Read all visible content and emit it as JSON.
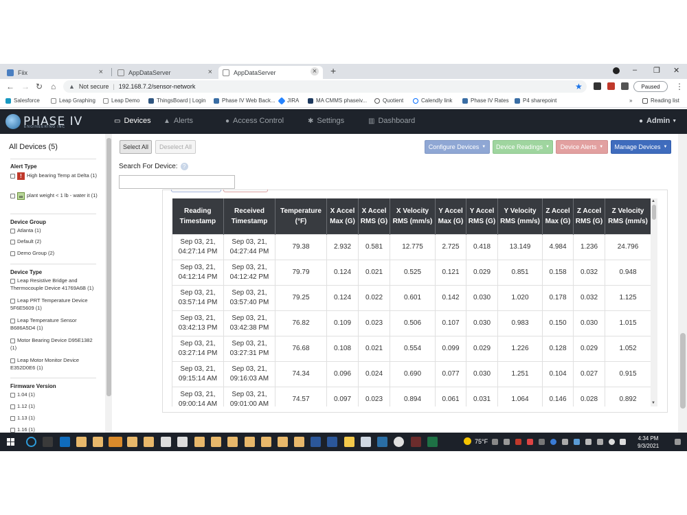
{
  "browser": {
    "tabs": [
      {
        "label": "Fiix",
        "icon": "fiix-icon"
      },
      {
        "label": "AppDataServer",
        "icon": "page-icon"
      },
      {
        "label": "AppDataServer",
        "icon": "page-icon",
        "active": true
      }
    ],
    "not_secure": "Not secure",
    "url": "192.168.7.2/sensor-network",
    "paused": "Paused",
    "bookmarks": [
      "Salesforce",
      "Leap Graphing",
      "Leap Demo",
      "ThingsBoard | Login",
      "Phase IV Web Back...",
      "JIRA",
      "MA CMMS phaseiv...",
      "Quotient",
      "Calendly link",
      "Phase IV Rates",
      "P4 sharepoint"
    ],
    "more": "»",
    "reading_list": "Reading list"
  },
  "app": {
    "logo": "PHASE IV",
    "logo_sub": "ENGINEERING INC",
    "nav": {
      "devices": "Devices",
      "alerts": "Alerts",
      "access_control": "Access Control",
      "settings": "Settings",
      "dashboard": "Dashboard",
      "admin": "Admin"
    }
  },
  "sidebar": {
    "title": "All Devices (5)",
    "alert_type": {
      "heading": "Alert Type",
      "items": [
        "High bearing Temp at Delta (1)",
        "plant weight < 1 lb - water it (1)"
      ]
    },
    "device_group": {
      "heading": "Device Group",
      "items": [
        "Atlanta (1)",
        "Default (2)",
        "Demo Group (2)"
      ]
    },
    "device_type": {
      "heading": "Device Type",
      "items": [
        "Leap Resistive Bridge and Thermocouple Device 41769A6B (1)",
        "Leap PRT Temperature Device 5F6E5609 (1)",
        "Leap Temperature Sensor B686A5D4 (1)",
        "Motor Bearing Device D95E1382 (1)",
        "Leap Motor Monitor Device E352D0E6 (1)"
      ]
    },
    "firmware": {
      "heading": "Firmware Version",
      "items": [
        "1.04 (1)",
        "1.12 (1)",
        "1.13 (1)",
        "1.16 (1)"
      ]
    }
  },
  "toolbar": {
    "select_all": "Select All",
    "deselect_all": "Deselect All",
    "configure": "Configure Devices",
    "readings": "Device Readings",
    "alerts": "Device Alerts",
    "manage": "Manage Devices",
    "search_label": "Search For Device:",
    "search_value": ""
  },
  "table": {
    "headers": [
      "Reading Timestamp",
      "Received Timestamp",
      "Temperature (°F)",
      "X Accel Max (G)",
      "X Accel RMS (G)",
      "X Velocity RMS (mm/s)",
      "Y Accel Max (G)",
      "Y Accel RMS (G)",
      "Y Velocity RMS (mm/s)",
      "Z Accel Max (G)",
      "Z Accel RMS (G)",
      "Z Velocity RMS (mm/s)"
    ],
    "rows": [
      [
        "Sep 03, 21, 04:27:14 PM",
        "Sep 03, 21, 04:27:44 PM",
        "79.38",
        "2.932",
        "0.581",
        "12.775",
        "2.725",
        "0.418",
        "13.149",
        "4.984",
        "1.236",
        "24.796"
      ],
      [
        "Sep 03, 21, 04:12:14 PM",
        "Sep 03, 21, 04:12:42 PM",
        "79.79",
        "0.124",
        "0.021",
        "0.525",
        "0.121",
        "0.029",
        "0.851",
        "0.158",
        "0.032",
        "0.948"
      ],
      [
        "Sep 03, 21, 03:57:14 PM",
        "Sep 03, 21, 03:57:40 PM",
        "79.25",
        "0.124",
        "0.022",
        "0.601",
        "0.142",
        "0.030",
        "1.020",
        "0.178",
        "0.032",
        "1.125"
      ],
      [
        "Sep 03, 21, 03:42:13 PM",
        "Sep 03, 21, 03:42:38 PM",
        "76.82",
        "0.109",
        "0.023",
        "0.506",
        "0.107",
        "0.030",
        "0.983",
        "0.150",
        "0.030",
        "1.015"
      ],
      [
        "Sep 03, 21, 03:27:14 PM",
        "Sep 03, 21, 03:27:31 PM",
        "76.68",
        "0.108",
        "0.021",
        "0.554",
        "0.099",
        "0.029",
        "1.226",
        "0.128",
        "0.029",
        "1.052"
      ],
      [
        "Sep 03, 21, 09:15:14 AM",
        "Sep 03, 21, 09:16:03 AM",
        "74.34",
        "0.096",
        "0.024",
        "0.690",
        "0.077",
        "0.030",
        "1.251",
        "0.104",
        "0.027",
        "0.915"
      ],
      [
        "Sep 03, 21, 09:00:14 AM",
        "Sep 03, 21, 09:01:00 AM",
        "74.57",
        "0.097",
        "0.023",
        "0.894",
        "0.061",
        "0.031",
        "1.064",
        "0.146",
        "0.028",
        "0.892"
      ]
    ]
  },
  "taskbar": {
    "weather": "75°F",
    "time": "4:34 PM",
    "date": "9/3/2021"
  },
  "colors": {
    "navbar": "#1e232b",
    "table_header": "#383b40",
    "accent": "#3f6cbd"
  }
}
